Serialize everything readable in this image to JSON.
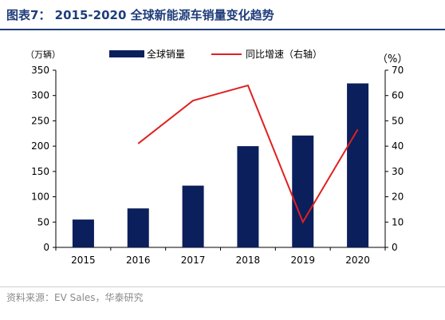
{
  "title": "图表7：  2015-2020 全球新能源车销量变化趋势",
  "source": "资料来源：EV Sales，华泰研究",
  "chart_data": {
    "type": "bar",
    "categories": [
      "2015",
      "2016",
      "2017",
      "2018",
      "2019",
      "2020"
    ],
    "series": [
      {
        "name": "全球销量",
        "type": "bar",
        "axis": "left",
        "color": "#0b1f5c",
        "values": [
          55,
          77,
          122,
          200,
          221,
          324
        ]
      },
      {
        "name": "同比增速（右轴）",
        "type": "line",
        "axis": "right",
        "color": "#e02020",
        "values": [
          null,
          41,
          58,
          64,
          10,
          46.6
        ]
      }
    ],
    "y_left": {
      "label": "（万辆）",
      "ticks": [
        0,
        50,
        100,
        150,
        200,
        250,
        300,
        350
      ],
      "ylim": [
        0,
        350
      ]
    },
    "y_right": {
      "label": "（%）",
      "ticks": [
        0,
        10,
        20,
        30,
        40,
        50,
        60,
        70
      ],
      "ylim": [
        0,
        70
      ]
    },
    "legend_position": "top",
    "grid": false
  }
}
